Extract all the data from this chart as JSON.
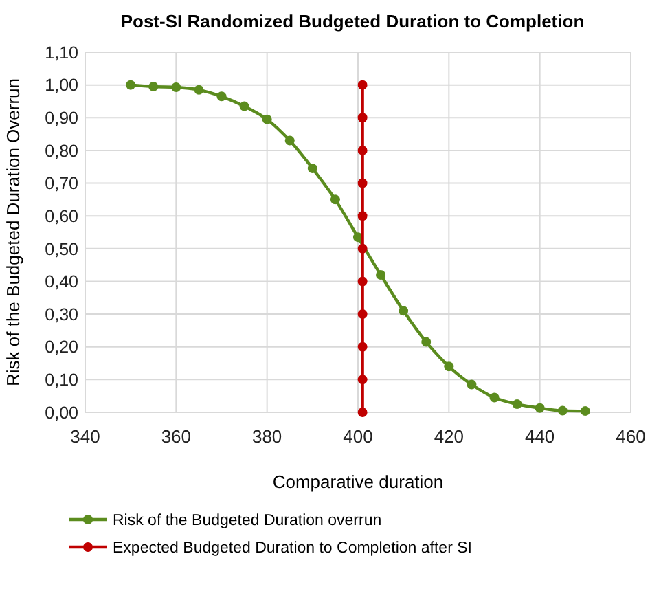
{
  "chart_data": {
    "type": "line",
    "title": "Post-SI Randomized Budgeted Duration to Completion",
    "xlabel": "Comparative duration",
    "ylabel": "Risk of the Budgeted Duration Overrun",
    "xlim": [
      340,
      460
    ],
    "xticks": [
      340,
      360,
      380,
      400,
      420,
      440,
      460
    ],
    "ylim": [
      0,
      1.1
    ],
    "yticks": [
      {
        "value": 0,
        "label": "0,00"
      },
      {
        "value": 0.1,
        "label": "0,10"
      },
      {
        "value": 0.2,
        "label": "0,20"
      },
      {
        "value": 0.3,
        "label": "0,30"
      },
      {
        "value": 0.4,
        "label": "0,40"
      },
      {
        "value": 0.5,
        "label": "0,50"
      },
      {
        "value": 0.6,
        "label": "0,60"
      },
      {
        "value": 0.7,
        "label": "0,70"
      },
      {
        "value": 0.8,
        "label": "0,80"
      },
      {
        "value": 0.9,
        "label": "0,90"
      },
      {
        "value": 1,
        "label": "1,00"
      },
      {
        "value": 1.1,
        "label": "1,10"
      }
    ],
    "grid": true,
    "legend": "bottom",
    "marker": "circle",
    "line_style": "solid",
    "series": [
      {
        "name": "Risk of the Budgeted Duration overrun",
        "color": "#5b8c1e",
        "x": [
          350,
          355,
          360,
          365,
          370,
          375,
          380,
          385,
          390,
          395,
          400,
          405,
          410,
          415,
          420,
          425,
          430,
          435,
          440,
          445,
          450
        ],
        "values": [
          1.0,
          0.995,
          0.993,
          0.985,
          0.965,
          0.935,
          0.895,
          0.83,
          0.745,
          0.65,
          0.535,
          0.42,
          0.31,
          0.215,
          0.14,
          0.085,
          0.045,
          0.025,
          0.013,
          0.005,
          0.004
        ]
      },
      {
        "name": "Expected Budgeted Duration to Completion after SI",
        "color": "#c00000",
        "x": [
          401,
          401,
          401,
          401,
          401,
          401,
          401,
          401,
          401,
          401,
          401
        ],
        "values": [
          0,
          0.1,
          0.2,
          0.3,
          0.4,
          0.5,
          0.6,
          0.7,
          0.8,
          0.9,
          1.0
        ]
      }
    ]
  }
}
